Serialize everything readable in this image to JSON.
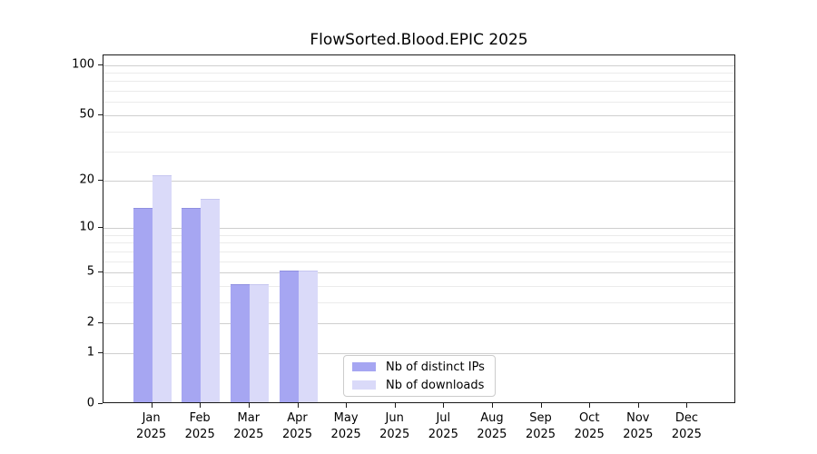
{
  "figure": {
    "title": "FlowSorted.Blood.EPIC 2025"
  },
  "chart_data": {
    "type": "bar",
    "title": "FlowSorted.Blood.EPIC 2025",
    "categories": [
      "Jan",
      "Feb",
      "Mar",
      "Apr",
      "May",
      "Jun",
      "Jul",
      "Aug",
      "Sep",
      "Oct",
      "Nov",
      "Dec"
    ],
    "category_year_line": "2025",
    "series": [
      {
        "name": "Nb of distinct IPs",
        "color": "#a6a6f2",
        "edge_color": "#8f8fe0",
        "values": [
          13,
          13,
          4,
          5,
          0,
          0,
          0,
          0,
          0,
          0,
          0,
          0
        ]
      },
      {
        "name": "Nb of downloads",
        "color": "#dadaf9",
        "edge_color": "#c6c6f0",
        "values": [
          21,
          15,
          4,
          5,
          0,
          0,
          0,
          0,
          0,
          0,
          0,
          0
        ]
      }
    ],
    "yscale": "log1p",
    "ylim": [
      0,
      114
    ],
    "yticks": [
      0,
      1,
      2,
      5,
      10,
      20,
      50,
      100
    ],
    "yticks_minor": [
      3,
      4,
      6,
      7,
      8,
      9,
      30,
      40,
      60,
      70,
      80,
      90
    ],
    "xlabel": "",
    "ylabel": "",
    "grid": "horizontal",
    "legend_position": "bottom-center-inside"
  },
  "colors": {
    "major_grid": "#cfcfcf",
    "minor_grid": "#ebebeb",
    "axis_line": "#1a1a1a",
    "legend_border": "#cccccc",
    "background": "#ffffff"
  }
}
